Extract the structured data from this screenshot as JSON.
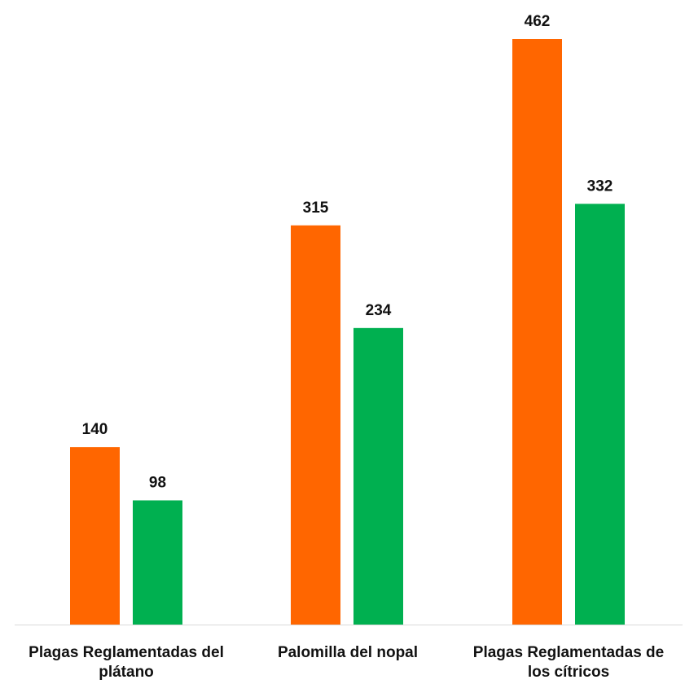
{
  "chart_data": {
    "type": "bar",
    "title": "",
    "xlabel": "",
    "ylabel": "",
    "categories": [
      [
        "Plagas Reglamentadas del",
        "plátano"
      ],
      [
        "Palomilla del nopal"
      ],
      [
        "Plagas Reglamentadas de",
        "los cítricos"
      ]
    ],
    "series": [
      {
        "color": "#FF6600",
        "values": [
          140,
          315,
          462
        ]
      },
      {
        "color": "#00B050",
        "values": [
          98,
          234,
          332
        ]
      }
    ],
    "ylim": [
      0,
      500
    ],
    "grid": false,
    "legend": "none",
    "axis_line_color": "#D9D9D9"
  }
}
